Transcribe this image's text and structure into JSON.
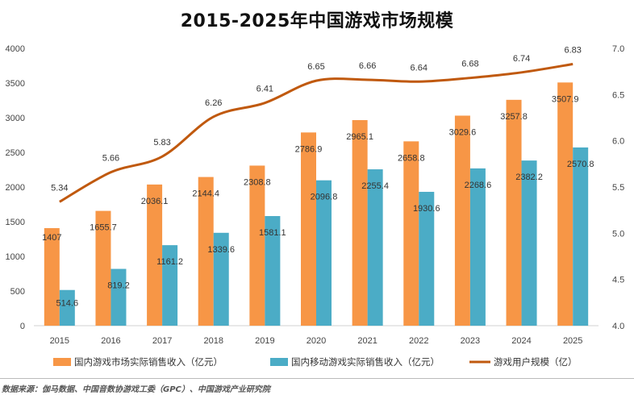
{
  "chart_data": {
    "type": "bar",
    "title": "2015-2025年中国游戏市场规模",
    "categories": [
      "2015",
      "2016",
      "2017",
      "2018",
      "2019",
      "2020",
      "2021",
      "2022",
      "2023",
      "2024",
      "2025"
    ],
    "series": [
      {
        "name": "国内游戏市场实际销售收入（亿元）",
        "type": "bar",
        "axis": "left",
        "color": "#F79646",
        "values": [
          1407,
          1655.7,
          2036.1,
          2144.4,
          2308.8,
          2786.9,
          2965.1,
          2658.8,
          3029.6,
          3257.8,
          3507.9
        ],
        "labels": [
          "1407",
          "1655.7",
          "2036.1",
          "2144.4",
          "2308.8",
          "2786.9",
          "2965.1",
          "2658.8",
          "3029.6",
          "3257.8",
          "3507.9"
        ]
      },
      {
        "name": "国内移动游戏实际销售收入（亿元）",
        "type": "bar",
        "axis": "left",
        "color": "#4BACC6",
        "values": [
          514.6,
          819.2,
          1161.2,
          1339.6,
          1581.1,
          2096.8,
          2255.4,
          1930.6,
          2268.6,
          2382.2,
          2570.8
        ],
        "labels": [
          "514.6",
          "819.2",
          "1161.2",
          "1339.6",
          "1581.1",
          "2096.8",
          "2255.4",
          "1930.6",
          "2268.6",
          "2382.2",
          "2570.8"
        ]
      },
      {
        "name": "游戏用户规模（亿）",
        "type": "line",
        "axis": "right",
        "color": "#C0590E",
        "values": [
          5.34,
          5.66,
          5.83,
          6.26,
          6.41,
          6.65,
          6.66,
          6.64,
          6.68,
          6.74,
          6.83
        ],
        "labels": [
          "5.34",
          "5.66",
          "5.83",
          "6.26",
          "6.41",
          "6.65",
          "6.66",
          "6.64",
          "6.68",
          "6.74",
          "6.83"
        ]
      }
    ],
    "y_left": {
      "min": 0,
      "max": 4000,
      "ticks": [
        "0",
        "500",
        "1000",
        "1500",
        "2000",
        "2500",
        "3000",
        "3500",
        "4000"
      ]
    },
    "y_right": {
      "min": 4.0,
      "max": 7.0,
      "ticks": [
        "4.0",
        "4.5",
        "5.0",
        "5.5",
        "6.0",
        "6.5",
        "7.0"
      ]
    },
    "grid": false,
    "legend_position": "bottom"
  },
  "source_text": "数据来源：伽马数据、中国音数协游戏工委（GPC）、中国游戏产业研究院"
}
